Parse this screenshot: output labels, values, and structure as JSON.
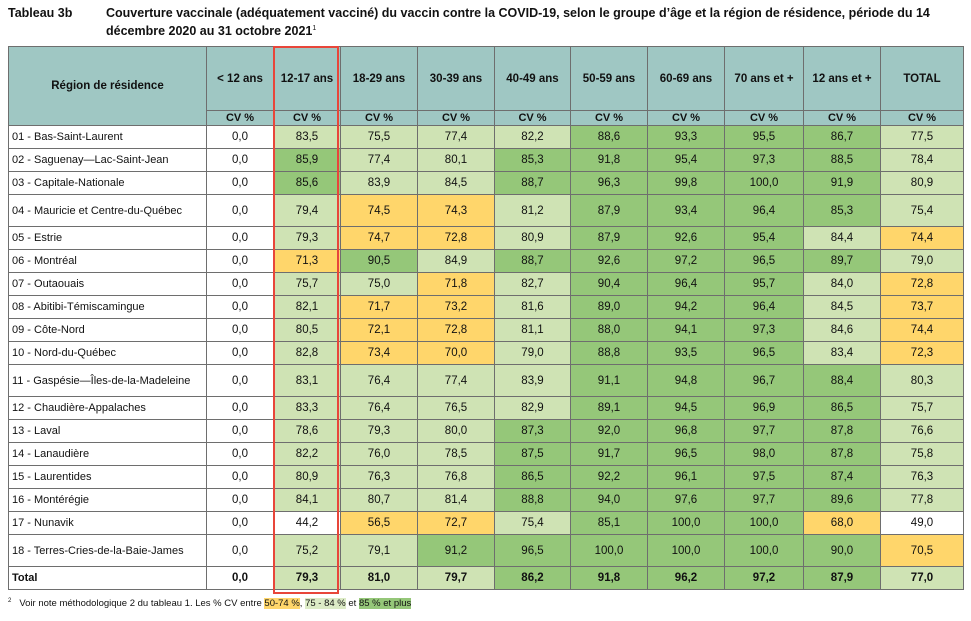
{
  "title": {
    "label": "Tableau 3b",
    "text": "Couverture vaccinale (adéquatement vacciné) du vaccin contre la COVID-19, selon le groupe d’âge et la région de résidence, période du 14 décembre 2020 au 31 octobre 2021",
    "sup": "1"
  },
  "table": {
    "region_header": "Région de résidence",
    "cv_label": "CV %",
    "columns": [
      "< 12 ans",
      "12-17 ans",
      "18-29 ans",
      "30-39 ans",
      "40-49 ans",
      "50-59 ans",
      "60-69 ans",
      "70 ans et +",
      "12 ans et +",
      "TOTAL"
    ],
    "rows": [
      {
        "region": "01 - Bas-Saint-Laurent",
        "values": [
          "0,0",
          "83,5",
          "75,5",
          "77,4",
          "82,2",
          "88,6",
          "93,3",
          "95,5",
          "86,7",
          "77,5"
        ],
        "colors": [
          "w",
          "l",
          "l",
          "l",
          "l",
          "g",
          "g",
          "g",
          "g",
          "l"
        ]
      },
      {
        "region": "02 - Saguenay—Lac-Saint-Jean",
        "values": [
          "0,0",
          "85,9",
          "77,4",
          "80,1",
          "85,3",
          "91,8",
          "95,4",
          "97,3",
          "88,5",
          "78,4"
        ],
        "colors": [
          "w",
          "g",
          "l",
          "l",
          "g",
          "g",
          "g",
          "g",
          "g",
          "l"
        ]
      },
      {
        "region": "03 - Capitale-Nationale",
        "values": [
          "0,0",
          "85,6",
          "83,9",
          "84,5",
          "88,7",
          "96,3",
          "99,8",
          "100,0",
          "91,9",
          "80,9"
        ],
        "colors": [
          "w",
          "g",
          "l",
          "l",
          "g",
          "g",
          "g",
          "g",
          "g",
          "l"
        ]
      },
      {
        "region": "04 - Mauricie et Centre-du-Québec",
        "values": [
          "0,0",
          "79,4",
          "74,5",
          "74,3",
          "81,2",
          "87,9",
          "93,4",
          "96,4",
          "85,3",
          "75,4"
        ],
        "colors": [
          "w",
          "l",
          "y",
          "y",
          "l",
          "g",
          "g",
          "g",
          "g",
          "l"
        ],
        "tall": true
      },
      {
        "region": "05 - Estrie",
        "values": [
          "0,0",
          "79,3",
          "74,7",
          "72,8",
          "80,9",
          "87,9",
          "92,6",
          "95,4",
          "84,4",
          "74,4"
        ],
        "colors": [
          "w",
          "l",
          "y",
          "y",
          "l",
          "g",
          "g",
          "g",
          "l",
          "y"
        ]
      },
      {
        "region": "06 - Montréal",
        "values": [
          "0,0",
          "71,3",
          "90,5",
          "84,9",
          "88,7",
          "92,6",
          "97,2",
          "96,5",
          "89,7",
          "79,0"
        ],
        "colors": [
          "w",
          "y",
          "g",
          "l",
          "g",
          "g",
          "g",
          "g",
          "g",
          "l"
        ]
      },
      {
        "region": "07 - Outaouais",
        "values": [
          "0,0",
          "75,7",
          "75,0",
          "71,8",
          "82,7",
          "90,4",
          "96,4",
          "95,7",
          "84,0",
          "72,8"
        ],
        "colors": [
          "w",
          "l",
          "l",
          "y",
          "l",
          "g",
          "g",
          "g",
          "l",
          "y"
        ]
      },
      {
        "region": "08 - Abitibi-Témiscamingue",
        "values": [
          "0,0",
          "82,1",
          "71,7",
          "73,2",
          "81,6",
          "89,0",
          "94,2",
          "96,4",
          "84,5",
          "73,7"
        ],
        "colors": [
          "w",
          "l",
          "y",
          "y",
          "l",
          "g",
          "g",
          "g",
          "l",
          "y"
        ]
      },
      {
        "region": "09 - Côte-Nord",
        "values": [
          "0,0",
          "80,5",
          "72,1",
          "72,8",
          "81,1",
          "88,0",
          "94,1",
          "97,3",
          "84,6",
          "74,4"
        ],
        "colors": [
          "w",
          "l",
          "y",
          "y",
          "l",
          "g",
          "g",
          "g",
          "l",
          "y"
        ]
      },
      {
        "region": "10 - Nord-du-Québec",
        "values": [
          "0,0",
          "82,8",
          "73,4",
          "70,0",
          "79,0",
          "88,8",
          "93,5",
          "96,5",
          "83,4",
          "72,3"
        ],
        "colors": [
          "w",
          "l",
          "y",
          "y",
          "l",
          "g",
          "g",
          "g",
          "l",
          "y"
        ]
      },
      {
        "region": "11 - Gaspésie—Îles-de-la-Madeleine",
        "values": [
          "0,0",
          "83,1",
          "76,4",
          "77,4",
          "83,9",
          "91,1",
          "94,8",
          "96,7",
          "88,4",
          "80,3"
        ],
        "colors": [
          "w",
          "l",
          "l",
          "l",
          "l",
          "g",
          "g",
          "g",
          "g",
          "l"
        ],
        "tall": true
      },
      {
        "region": "12 - Chaudière-Appalaches",
        "values": [
          "0,0",
          "83,3",
          "76,4",
          "76,5",
          "82,9",
          "89,1",
          "94,5",
          "96,9",
          "86,5",
          "75,7"
        ],
        "colors": [
          "w",
          "l",
          "l",
          "l",
          "l",
          "g",
          "g",
          "g",
          "g",
          "l"
        ]
      },
      {
        "region": "13 - Laval",
        "values": [
          "0,0",
          "78,6",
          "79,3",
          "80,0",
          "87,3",
          "92,0",
          "96,8",
          "97,7",
          "87,8",
          "76,6"
        ],
        "colors": [
          "w",
          "l",
          "l",
          "l",
          "g",
          "g",
          "g",
          "g",
          "g",
          "l"
        ]
      },
      {
        "region": "14 - Lanaudière",
        "values": [
          "0,0",
          "82,2",
          "76,0",
          "78,5",
          "87,5",
          "91,7",
          "96,5",
          "98,0",
          "87,8",
          "75,8"
        ],
        "colors": [
          "w",
          "l",
          "l",
          "l",
          "g",
          "g",
          "g",
          "g",
          "g",
          "l"
        ]
      },
      {
        "region": "15 - Laurentides",
        "values": [
          "0,0",
          "80,9",
          "76,3",
          "76,8",
          "86,5",
          "92,2",
          "96,1",
          "97,5",
          "87,4",
          "76,3"
        ],
        "colors": [
          "w",
          "l",
          "l",
          "l",
          "g",
          "g",
          "g",
          "g",
          "g",
          "l"
        ]
      },
      {
        "region": "16 - Montérégie",
        "values": [
          "0,0",
          "84,1",
          "80,7",
          "81,4",
          "88,8",
          "94,0",
          "97,6",
          "97,7",
          "89,6",
          "77,8"
        ],
        "colors": [
          "w",
          "l",
          "l",
          "l",
          "g",
          "g",
          "g",
          "g",
          "g",
          "l"
        ]
      },
      {
        "region": "17 - Nunavik",
        "values": [
          "0,0",
          "44,2",
          "56,5",
          "72,7",
          "75,4",
          "85,1",
          "100,0",
          "100,0",
          "68,0",
          "49,0"
        ],
        "colors": [
          "w",
          "w",
          "y",
          "y",
          "l",
          "g",
          "g",
          "g",
          "y",
          "w"
        ]
      },
      {
        "region": "18 - Terres-Cries-de-la-Baie-James",
        "values": [
          "0,0",
          "75,2",
          "79,1",
          "91,2",
          "96,5",
          "100,0",
          "100,0",
          "100,0",
          "90,0",
          "70,5"
        ],
        "colors": [
          "w",
          "l",
          "l",
          "g",
          "g",
          "g",
          "g",
          "g",
          "g",
          "y"
        ],
        "tall": true
      },
      {
        "region": "Total",
        "values": [
          "0,0",
          "79,3",
          "81,0",
          "79,7",
          "86,2",
          "91,8",
          "96,2",
          "97,2",
          "87,9",
          "77,0"
        ],
        "colors": [
          "w",
          "l",
          "l",
          "l",
          "g",
          "g",
          "g",
          "g",
          "g",
          "l"
        ],
        "total": true
      }
    ]
  },
  "footnote": {
    "sup": "2",
    "text": "Voir note méthodologique 2 du tableau 1. Les % CV entre",
    "range_yellow": "50-74 %",
    "sep1": ",",
    "range_light": "75 - 84 %",
    "sep2": "et",
    "range_green": "85 % et plus"
  },
  "colors": {
    "header": "#9fc7c3",
    "yellow": "#ffd66b",
    "light_green": "#cfe3b4",
    "green": "#95c779",
    "highlight": "#e8463a"
  }
}
